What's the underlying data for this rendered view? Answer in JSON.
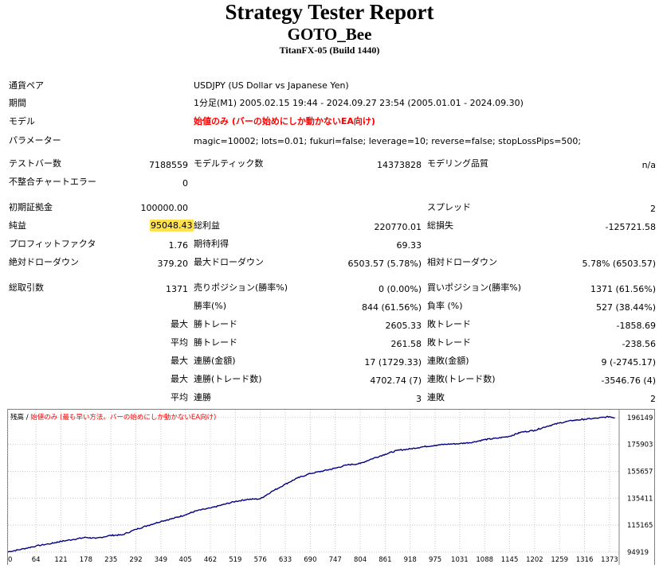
{
  "report": {
    "title": "Strategy Tester Report",
    "ea_name": "GOTO_Bee",
    "server": "TitanFX-05 (Build 1440)"
  },
  "info": [
    {
      "label": "通貨ペア",
      "value": "USDJPY (US Dollar vs Japanese Yen)"
    },
    {
      "label": "期間",
      "value": "1分足(M1) 2005.02.15 19:44 - 2024.09.27 23:54 (2005.01.01 - 2024.09.30)"
    },
    {
      "label": "モデル",
      "value": "始値のみ (バーの始めにしか動かないEA向け)"
    },
    {
      "label": "パラメーター",
      "value": "magic=10002; lots=0.01; fukuri=false; leverage=10; reverse=false; stopLossPips=500;"
    }
  ],
  "bars": {
    "test_bars_label": "テストバー数",
    "test_bars": "7188559",
    "ticks_label": "モデルティック数",
    "ticks": "14373828",
    "quality_label": "モデリング品質",
    "quality": "n/a",
    "errors_label": "不整合チャートエラー",
    "errors": "0"
  },
  "summary": {
    "deposit_label": "初期証拠金",
    "deposit": "100000.00",
    "spread_label": "スプレッド",
    "spread": "2",
    "net_label": "純益",
    "net": "95048.43",
    "gross_profit_label": "総利益",
    "gross_profit": "220770.01",
    "gross_loss_label": "総損失",
    "gross_loss": "-125721.58",
    "pf_label": "プロフィットファクタ",
    "pf": "1.76",
    "expected_label": "期待利得",
    "expected": "69.33",
    "abs_dd_label": "絶対ドローダウン",
    "abs_dd": "379.20",
    "max_dd_label": "最大ドローダウン",
    "max_dd": "6503.57 (5.78%)",
    "rel_dd_label": "相対ドローダウン",
    "rel_dd": "5.78% (6503.57)"
  },
  "trades": {
    "total_label": "総取引数",
    "total": "1371",
    "short_label": "売りポジション(勝率%)",
    "short": "0 (0.00%)",
    "long_label": "買いポジション(勝率%)",
    "long": "1371 (61.56%)",
    "win_rate_label": "勝率(%)",
    "win_rate": "844 (61.56%)",
    "loss_rate_label": "負率 (%)",
    "loss_rate": "527 (38.44%)",
    "max_word": "最大",
    "avg_word": "平均",
    "win_trade_label": "勝トレード",
    "loss_trade_label": "敗トレード",
    "max_win": "2605.33",
    "max_loss": "-1858.69",
    "avg_win": "261.58",
    "avg_loss": "-238.56",
    "consec_win_amt_label": "連勝(金額)",
    "consec_win_amt": "17 (1729.33)",
    "consec_loss_amt_label": "連敗(金額)",
    "consec_loss_amt": "9 (-2745.17)",
    "consec_win_cnt_label": "連勝(トレード数)",
    "consec_win_cnt": "4702.74 (7)",
    "consec_loss_cnt_label": "連敗(トレード数)",
    "consec_loss_cnt": "-3546.76 (4)",
    "avg_consec_win_label": "連勝",
    "avg_consec_win": "3",
    "avg_consec_loss_label": "連敗",
    "avg_consec_loss": "2"
  },
  "chart_data": {
    "type": "line",
    "legend_balance": "残高",
    "legend_sep": " / ",
    "legend_model": "始値のみ (最も早い方法。バーの始めにしか動かないEA向け)",
    "line_color": "#000080",
    "legend_model_color": "#ff0000",
    "x_ticks": [
      0,
      64,
      121,
      178,
      235,
      292,
      349,
      405,
      462,
      519,
      576,
      633,
      690,
      747,
      804,
      861,
      918,
      975,
      1031,
      1088,
      1145,
      1202,
      1259,
      1316,
      1373
    ],
    "y_ticks": [
      94919,
      115165,
      135411,
      155657,
      175903,
      196149
    ],
    "xlim": [
      0,
      1395
    ],
    "ylim": [
      94919,
      202000
    ],
    "x": [
      0,
      30,
      64,
      100,
      121,
      150,
      178,
      200,
      235,
      260,
      292,
      320,
      349,
      380,
      405,
      430,
      462,
      490,
      519,
      545,
      576,
      600,
      633,
      660,
      690,
      720,
      747,
      775,
      804,
      830,
      861,
      890,
      918,
      945,
      975,
      1000,
      1031,
      1060,
      1088,
      1115,
      1145,
      1170,
      1202,
      1230,
      1259,
      1290,
      1316,
      1345,
      1373,
      1385
    ],
    "y": [
      95100,
      97000,
      99500,
      101500,
      103000,
      104500,
      106000,
      105200,
      107500,
      107800,
      112000,
      115000,
      118000,
      120500,
      123000,
      126000,
      128000,
      130500,
      133000,
      134500,
      135000,
      140000,
      146000,
      150500,
      154000,
      156000,
      158000,
      160500,
      161500,
      165000,
      168500,
      171500,
      172500,
      174000,
      175200,
      176000,
      176500,
      177500,
      179500,
      180500,
      182000,
      185000,
      186500,
      189500,
      192000,
      194000,
      194800,
      195600,
      196800,
      196000
    ]
  }
}
